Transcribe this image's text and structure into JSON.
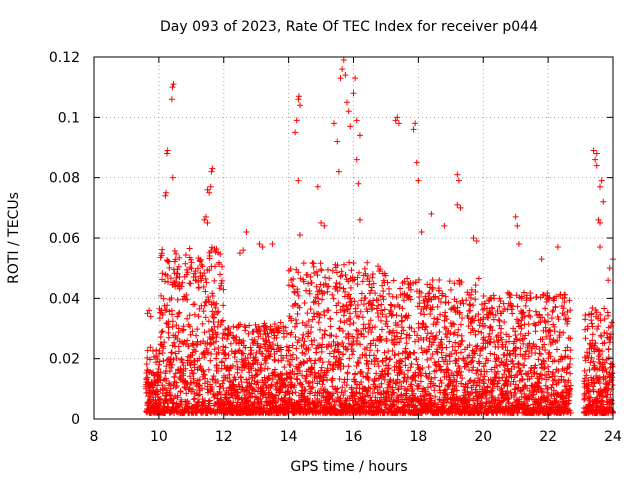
{
  "chart_data": {
    "type": "scatter",
    "title": "Day 093 of 2023, Rate Of TEC Index for receiver p044",
    "xlabel": "GPS time / hours",
    "ylabel": "ROTI / TECUs",
    "xlim": [
      8,
      24
    ],
    "ylim": [
      0,
      0.12
    ],
    "x_ticks": [
      "8",
      "10",
      "12",
      "14",
      "16",
      "18",
      "20",
      "22",
      "24"
    ],
    "y_ticks": [
      "0",
      "0.02",
      "0.04",
      "0.06",
      "0.08",
      "0.1",
      "0.12"
    ],
    "grid": true,
    "marker": "+",
    "color": "#ff0000",
    "coverage_start_hour": 9.6,
    "coverage_gap_hours": [
      22.7,
      23.1
    ],
    "typical_range": [
      0.0,
      0.035
    ],
    "points": [
      [
        9.65,
        0.035
      ],
      [
        9.7,
        0.036
      ],
      [
        9.75,
        0.034
      ],
      [
        10.2,
        0.074
      ],
      [
        10.22,
        0.075
      ],
      [
        10.25,
        0.088
      ],
      [
        10.27,
        0.089
      ],
      [
        10.4,
        0.106
      ],
      [
        10.42,
        0.11
      ],
      [
        10.45,
        0.111
      ],
      [
        10.43,
        0.08
      ],
      [
        11.5,
        0.076
      ],
      [
        11.55,
        0.075
      ],
      [
        11.6,
        0.077
      ],
      [
        11.62,
        0.082
      ],
      [
        11.65,
        0.083
      ],
      [
        11.4,
        0.066
      ],
      [
        11.45,
        0.067
      ],
      [
        11.5,
        0.065
      ],
      [
        12.5,
        0.055
      ],
      [
        12.6,
        0.056
      ],
      [
        12.7,
        0.062
      ],
      [
        13.1,
        0.058
      ],
      [
        13.2,
        0.057
      ],
      [
        13.5,
        0.058
      ],
      [
        14.2,
        0.095
      ],
      [
        14.25,
        0.099
      ],
      [
        14.3,
        0.106
      ],
      [
        14.32,
        0.107
      ],
      [
        14.35,
        0.104
      ],
      [
        14.3,
        0.079
      ],
      [
        14.35,
        0.061
      ],
      [
        14.9,
        0.077
      ],
      [
        15.0,
        0.065
      ],
      [
        15.1,
        0.064
      ],
      [
        15.4,
        0.098
      ],
      [
        15.5,
        0.092
      ],
      [
        15.55,
        0.082
      ],
      [
        15.6,
        0.113
      ],
      [
        15.65,
        0.116
      ],
      [
        15.7,
        0.119
      ],
      [
        15.75,
        0.114
      ],
      [
        15.8,
        0.105
      ],
      [
        15.85,
        0.102
      ],
      [
        15.9,
        0.097
      ],
      [
        16.0,
        0.108
      ],
      [
        16.05,
        0.113
      ],
      [
        16.1,
        0.099
      ],
      [
        16.2,
        0.094
      ],
      [
        16.1,
        0.086
      ],
      [
        16.15,
        0.078
      ],
      [
        16.2,
        0.066
      ],
      [
        17.3,
        0.099
      ],
      [
        17.35,
        0.1
      ],
      [
        17.4,
        0.098
      ],
      [
        17.85,
        0.096
      ],
      [
        17.9,
        0.098
      ],
      [
        17.95,
        0.085
      ],
      [
        18.0,
        0.079
      ],
      [
        18.1,
        0.062
      ],
      [
        18.4,
        0.068
      ],
      [
        18.8,
        0.064
      ],
      [
        19.2,
        0.081
      ],
      [
        19.25,
        0.079
      ],
      [
        19.2,
        0.071
      ],
      [
        19.3,
        0.07
      ],
      [
        19.7,
        0.06
      ],
      [
        19.8,
        0.059
      ],
      [
        21.0,
        0.067
      ],
      [
        21.05,
        0.064
      ],
      [
        21.1,
        0.058
      ],
      [
        21.8,
        0.053
      ],
      [
        22.3,
        0.057
      ],
      [
        23.4,
        0.089
      ],
      [
        23.45,
        0.086
      ],
      [
        23.5,
        0.088
      ],
      [
        23.5,
        0.084
      ],
      [
        23.6,
        0.077
      ],
      [
        23.65,
        0.079
      ],
      [
        23.7,
        0.072
      ],
      [
        23.55,
        0.066
      ],
      [
        23.6,
        0.065
      ],
      [
        23.6,
        0.057
      ],
      [
        23.9,
        0.05
      ],
      [
        24.0,
        0.053
      ],
      [
        23.85,
        0.046
      ]
    ]
  }
}
